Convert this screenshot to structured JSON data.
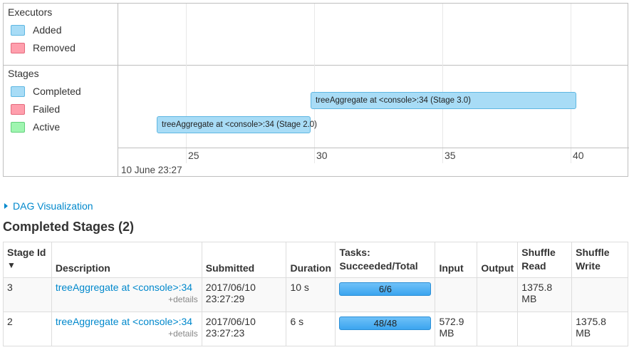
{
  "timeline": {
    "executors_title": "Executors",
    "executors_legend": [
      "Added",
      "Removed"
    ],
    "stages_title": "Stages",
    "stages_legend": [
      "Completed",
      "Failed",
      "Active"
    ],
    "ticks": [
      "25",
      "30",
      "35",
      "40"
    ],
    "date_label": "10 June 23:27",
    "bars": [
      {
        "label": "treeAggregate at <console>:34 (Stage 3.0)",
        "start": 29.3,
        "end": 39.7
      },
      {
        "label": "treeAggregate at <console>:34 (Stage 2.0)",
        "start": 23.3,
        "end": 29.3
      }
    ],
    "colors": {
      "completed": "#a8dcf6",
      "failed": "#ff9fad",
      "active": "#9ff5b0"
    }
  },
  "dag_link": "DAG Visualization",
  "section_title": "Completed Stages (2)",
  "table": {
    "headers": {
      "stage_id": "Stage Id",
      "sort_arrow": "▼",
      "description": "Description",
      "submitted": "Submitted",
      "duration": "Duration",
      "tasks_1": "Tasks:",
      "tasks_2": "Succeeded/Total",
      "input": "Input",
      "output": "Output",
      "shuffle_read_1": "Shuffle",
      "shuffle_read_2": "Read",
      "shuffle_write_1": "Shuffle",
      "shuffle_write_2": "Write"
    },
    "rows": [
      {
        "stage_id": "3",
        "description": "treeAggregate at <console>:34",
        "details": "+details",
        "submitted_1": "2017/06/10",
        "submitted_2": "23:27:29",
        "duration": "10 s",
        "tasks": "6/6",
        "tasks_fraction": 1.0,
        "input_1": "",
        "input_2": "",
        "output": "",
        "shuffle_read_1": "1375.8",
        "shuffle_read_2": "MB",
        "shuffle_write_1": "",
        "shuffle_write_2": ""
      },
      {
        "stage_id": "2",
        "description": "treeAggregate at <console>:34",
        "details": "+details",
        "submitted_1": "2017/06/10",
        "submitted_2": "23:27:23",
        "duration": "6 s",
        "tasks": "48/48",
        "tasks_fraction": 1.0,
        "input_1": "572.9",
        "input_2": "MB",
        "output": "",
        "shuffle_read_1": "",
        "shuffle_read_2": "",
        "shuffle_write_1": "1375.8",
        "shuffle_write_2": "MB"
      }
    ]
  }
}
